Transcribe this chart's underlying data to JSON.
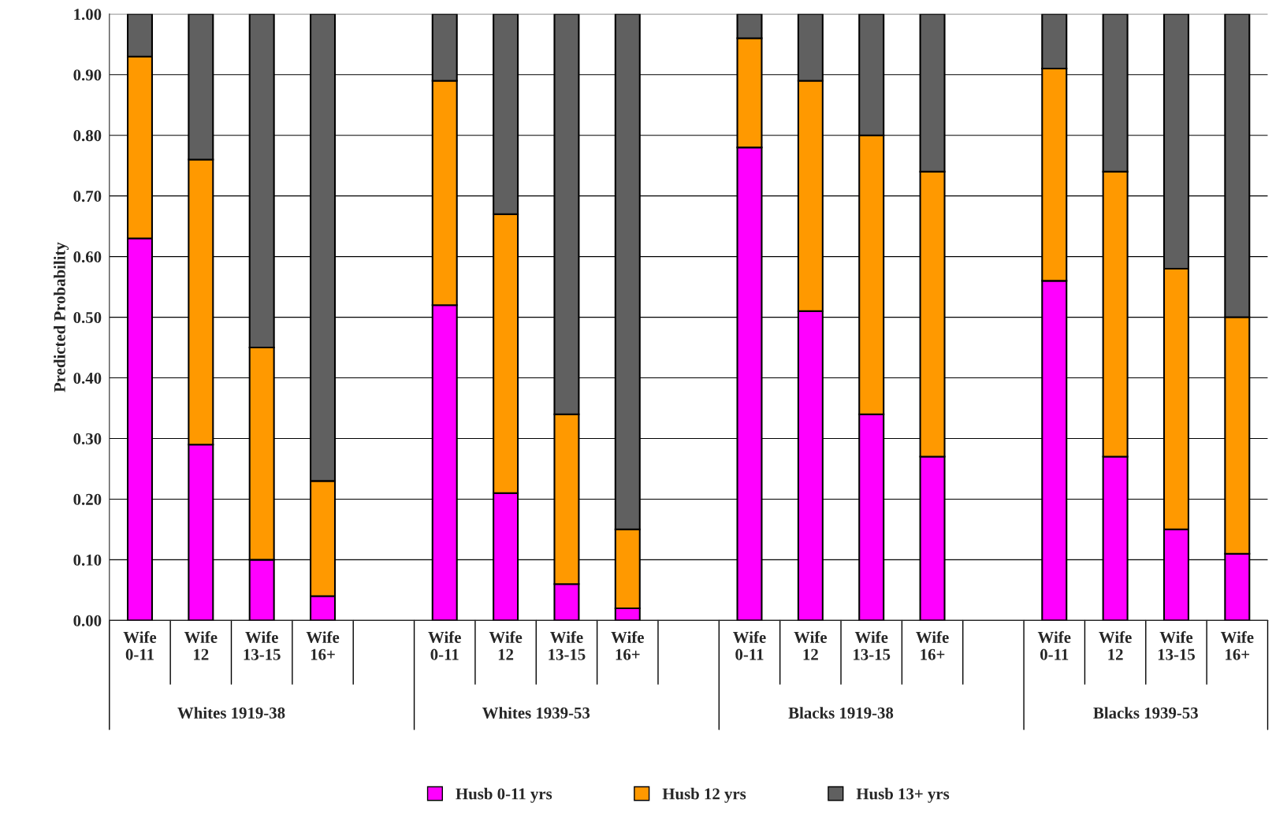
{
  "chart_data": {
    "type": "bar",
    "stacked": true,
    "ylabel": "Predicted Probability",
    "categories": [
      "Wife\n0-11",
      "Wife\n12",
      "Wife\n13-15",
      "Wife\n16+",
      null,
      "Wife\n0-11",
      "Wife\n12",
      "Wife\n13-15",
      "Wife\n16+",
      null,
      "Wife\n0-11",
      "Wife\n12",
      "Wife\n13-15",
      "Wife\n16+",
      null,
      "Wife\n0-11",
      "Wife\n12",
      "Wife\n13-15",
      "Wife\n16+"
    ],
    "series": [
      {
        "name": "Husb 0-11 yrs",
        "color": "#ff00ff",
        "values": [
          0.63,
          0.29,
          0.1,
          0.04,
          null,
          0.52,
          0.21,
          0.06,
          0.02,
          null,
          0.78,
          0.51,
          0.34,
          0.27,
          null,
          0.56,
          0.27,
          0.15,
          0.11
        ]
      },
      {
        "name": "Husb 12 yrs",
        "color": "#ff9900",
        "values": [
          0.3,
          0.47,
          0.35,
          0.19,
          null,
          0.37,
          0.46,
          0.28,
          0.13,
          null,
          0.18,
          0.38,
          0.46,
          0.47,
          null,
          0.35,
          0.47,
          0.43,
          0.39
        ]
      },
      {
        "name": "Husb 13+ yrs",
        "color": "#606060",
        "values": [
          0.07,
          0.24,
          0.55,
          0.77,
          null,
          0.11,
          0.33,
          0.66,
          0.85,
          null,
          0.04,
          0.11,
          0.2,
          0.26,
          null,
          0.09,
          0.26,
          0.42,
          0.5
        ]
      }
    ],
    "annotations": [
      "Whites 1919-38",
      "Whites 1939-53",
      "Blacks 1919-38",
      "Blacks 1939-53"
    ],
    "ylim": [
      0,
      1
    ],
    "yticks": [
      {
        "value": 0,
        "label": "0.00"
      },
      {
        "value": 0.1,
        "label": "0.10"
      },
      {
        "value": 0.2,
        "label": "0.20"
      },
      {
        "value": 0.3,
        "label": "0.30"
      },
      {
        "value": 0.4,
        "label": "0.40"
      },
      {
        "value": 0.5,
        "label": "0.50"
      },
      {
        "value": 0.6,
        "label": "0.60"
      },
      {
        "value": 0.7,
        "label": "0.70"
      },
      {
        "value": 0.8,
        "label": "0.80"
      },
      {
        "value": 0.9,
        "label": "0.90"
      },
      {
        "value": 1,
        "label": "1.00"
      }
    ],
    "grid": "y",
    "legend": "bottom"
  }
}
